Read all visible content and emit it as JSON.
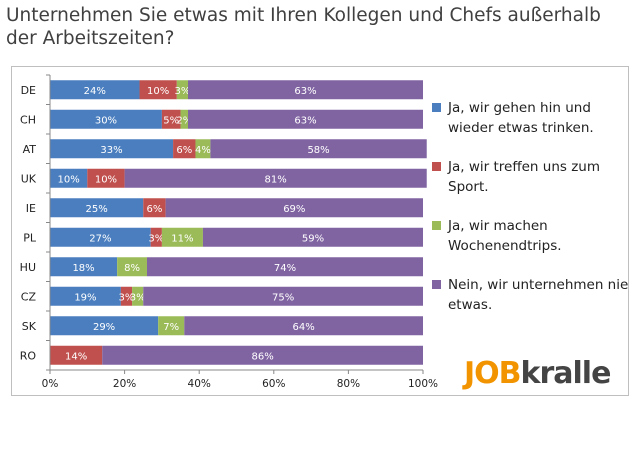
{
  "title": "Unternehmen Sie etwas mit Ihren Kollegen und Chefs außerhalb der Arbeitszeiten?",
  "logo": {
    "part1": "JOB",
    "part2": "kralle"
  },
  "chart_data": {
    "type": "bar",
    "orientation": "horizontal",
    "stacked": true,
    "categories": [
      "DE",
      "CH",
      "AT",
      "UK",
      "IE",
      "PL",
      "HU",
      "CZ",
      "SK",
      "RO"
    ],
    "series": [
      {
        "name": "Ja, wir gehen hin und wieder etwas trinken.",
        "color": "#4a7ebf",
        "values": [
          24,
          30,
          33,
          10,
          25,
          27,
          18,
          19,
          29,
          0
        ],
        "labels": [
          "24%",
          "30%",
          "33%",
          "10%",
          "25%",
          "27%",
          "18%",
          "19%",
          "29%",
          ""
        ]
      },
      {
        "name": "Ja, wir treffen uns zum Sport.",
        "color": "#c0504d",
        "values": [
          10,
          5,
          6,
          10,
          6,
          3,
          0,
          3,
          0,
          14
        ],
        "labels": [
          "10%",
          "5%",
          "6%",
          "10%",
          "6%",
          "3%",
          "",
          "3%",
          "",
          "14%"
        ]
      },
      {
        "name": "Ja, wir machen Wochenendtrips.",
        "color": "#9bbb59",
        "values": [
          3,
          2,
          4,
          0,
          0,
          11,
          8,
          3,
          7,
          0
        ],
        "labels": [
          "3%",
          "2%",
          "4%",
          "",
          "",
          "11%",
          "8%",
          "3%",
          "7%",
          ""
        ]
      },
      {
        "name": "Nein, wir unternehmen nie etwas.",
        "color": "#8064a2",
        "values": [
          63,
          63,
          58,
          81,
          69,
          59,
          74,
          75,
          64,
          86
        ],
        "labels": [
          "63%",
          "63%",
          "58%",
          "81%",
          "69%",
          "59%",
          "74%",
          "75%",
          "64%",
          "86%"
        ]
      }
    ],
    "xlim": [
      0,
      100
    ],
    "xticks": [
      "0%",
      "20%",
      "40%",
      "60%",
      "80%",
      "100%"
    ],
    "grid": false,
    "legend_position": "right"
  }
}
